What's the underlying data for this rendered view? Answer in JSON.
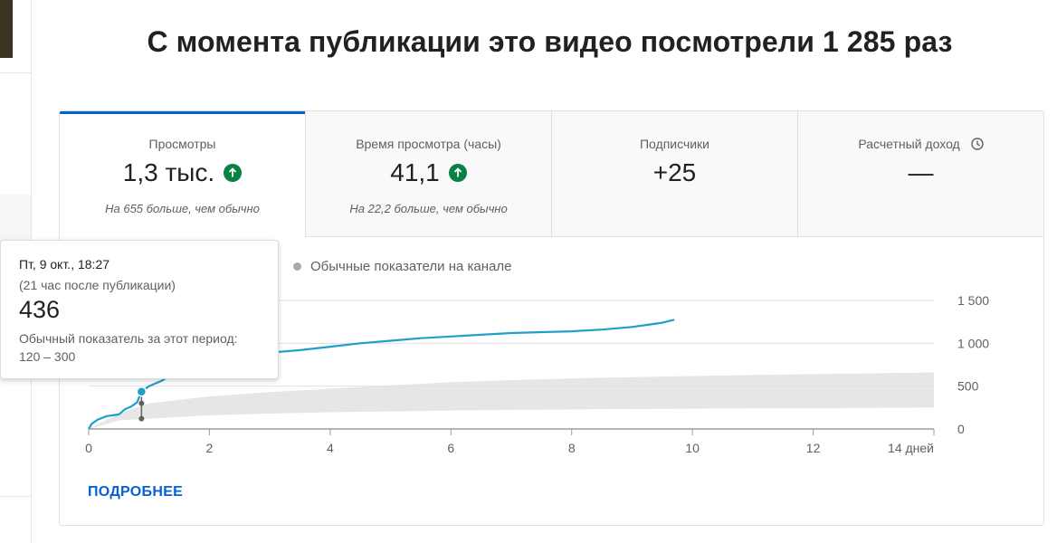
{
  "headline": "С момента публикации это видео посмотрели 1 285 раз",
  "tabs": [
    {
      "label": "Просмотры",
      "value": "1,3 тыс.",
      "note": "На 655 больше, чем обычно",
      "trend": "up-icon"
    },
    {
      "label": "Время просмотра (часы)",
      "value": "41,1",
      "note": "На 22,2 больше, чем обычно",
      "trend": "up-icon"
    },
    {
      "label": "Подписчики",
      "value": "+25",
      "note": ""
    },
    {
      "label": "Расчетный доход",
      "value": "—",
      "note": "",
      "icon": "clock-icon"
    }
  ],
  "legend": {
    "label": "Обычные показатели на канале"
  },
  "more_link": "ПОДРОБНЕЕ",
  "tooltip": {
    "date": "Пт, 9 окт., 18:27",
    "sub": "(21 час после публикации)",
    "value": "436",
    "normal_label": "Обычный показатель за этот период:",
    "normal_range": "120 – 300",
    "hover_x": 0.875
  },
  "colors": {
    "accent": "#065fd4",
    "line": "#1ea0c8",
    "band": "#e6e6e6",
    "up": "#0b8043"
  },
  "chart_data": {
    "type": "line",
    "x_unit_label": "дней",
    "xlim": [
      0,
      14
    ],
    "ylim": [
      0,
      1500
    ],
    "x_ticks": [
      0,
      2,
      4,
      6,
      8,
      10,
      12,
      14
    ],
    "x_tick_labels": [
      "0",
      "2",
      "4",
      "6",
      "8",
      "10",
      "12",
      "14 дней"
    ],
    "y_ticks": [
      0,
      500,
      1000,
      1500
    ],
    "y_tick_labels": [
      "0",
      "500",
      "1 000",
      "1 500"
    ],
    "grid": true,
    "series": [
      {
        "x": [
          0,
          0.05,
          0.15,
          0.3,
          0.5,
          0.6,
          0.7,
          0.8,
          0.875,
          1.0,
          1.2,
          1.4,
          1.6,
          1.8,
          2.0,
          2.3,
          2.6,
          3.0,
          3.5,
          4.0,
          4.5,
          5.0,
          5.5,
          6.0,
          6.5,
          7.0,
          7.5,
          8.0,
          8.5,
          9.0,
          9.3,
          9.5,
          9.7
        ],
        "y": [
          0,
          60,
          110,
          150,
          170,
          230,
          260,
          310,
          436,
          500,
          560,
          640,
          720,
          790,
          840,
          870,
          880,
          890,
          920,
          960,
          1000,
          1030,
          1060,
          1080,
          1100,
          1120,
          1130,
          1140,
          1160,
          1190,
          1220,
          1240,
          1275
        ]
      }
    ],
    "typical_band": {
      "x": [
        0,
        0.5,
        1,
        2,
        3,
        4,
        5,
        6,
        7,
        8,
        9,
        10,
        11,
        12,
        13,
        14
      ],
      "low": [
        0,
        100,
        120,
        160,
        180,
        195,
        205,
        215,
        222,
        228,
        233,
        237,
        240,
        243,
        246,
        250
      ],
      "high": [
        0,
        180,
        300,
        380,
        430,
        470,
        510,
        545,
        570,
        590,
        605,
        618,
        630,
        640,
        650,
        660
      ]
    },
    "hover_points": [
      {
        "x": 0.875,
        "y": 436
      },
      {
        "x": 0.875,
        "y": 300
      },
      {
        "x": 0.875,
        "y": 120
      }
    ]
  }
}
